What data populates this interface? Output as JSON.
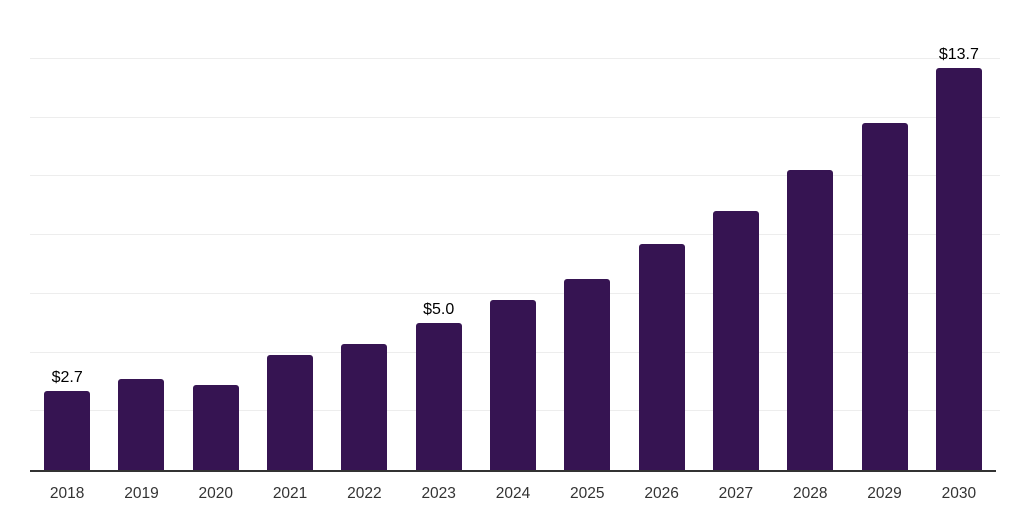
{
  "chart": {
    "background": "#ffffff",
    "bar_color": "#361452",
    "grid_color": "#ededed",
    "axis_line_color": "#333333",
    "value_label_color": "#000000",
    "tick_label_color": "#333333"
  },
  "chart_data": {
    "type": "bar",
    "title": "",
    "xlabel": "",
    "ylabel": "",
    "categories": [
      "2018",
      "2019",
      "2020",
      "2021",
      "2022",
      "2023",
      "2024",
      "2025",
      "2026",
      "2027",
      "2028",
      "2029",
      "2030"
    ],
    "values": [
      2.7,
      3.1,
      2.9,
      3.9,
      4.3,
      5.0,
      5.8,
      6.5,
      7.7,
      8.8,
      10.2,
      11.8,
      13.7
    ],
    "data_labels": [
      "$2.7",
      "",
      "",
      "",
      "",
      "$5.0",
      "",
      "",
      "",
      "",
      "",
      "",
      "$13.7"
    ],
    "ylim": [
      0,
      16
    ],
    "grid_step": 2,
    "grid": true,
    "legend": false,
    "y_tick_labels_visible": false
  }
}
